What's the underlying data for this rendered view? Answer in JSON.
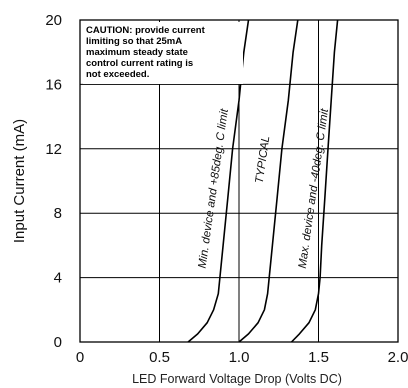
{
  "chart_data": {
    "type": "line",
    "title": "",
    "xlabel": "LED Forward Voltage Drop (Volts DC)",
    "ylabel": "Input Current (mA)",
    "xlim": [
      0,
      2.0
    ],
    "ylim": [
      0,
      20
    ],
    "x_ticks": [
      "0",
      "0.5",
      "1.0",
      "1.5",
      "2.0"
    ],
    "y_ticks": [
      "0",
      "4",
      "8",
      "12",
      "16",
      "20"
    ],
    "grid": true,
    "annotation_lines": [
      "CAUTION: provide current",
      "limiting so that 25mA",
      "maximum steady state",
      "control current rating is",
      "not exceeded."
    ],
    "series": [
      {
        "label": "Min. device and +85deg. C limit",
        "x": [
          0.68,
          0.74,
          0.8,
          0.84,
          0.87,
          0.88,
          0.9,
          0.93,
          0.96,
          1.0,
          1.03,
          1.06
        ],
        "y": [
          0,
          0.5,
          1.2,
          2.0,
          3.0,
          4.0,
          6.0,
          9.0,
          12.0,
          15.0,
          18.0,
          20.0
        ]
      },
      {
        "label": "TYPICAL",
        "x": [
          1.0,
          1.06,
          1.12,
          1.16,
          1.18,
          1.19,
          1.21,
          1.24,
          1.27,
          1.31,
          1.34,
          1.37
        ],
        "y": [
          0,
          0.5,
          1.2,
          2.0,
          3.0,
          4.0,
          6.0,
          9.0,
          12.0,
          15.0,
          18.0,
          20.0
        ]
      },
      {
        "label": "Max. device and -40deg. C limit",
        "x": [
          1.33,
          1.38,
          1.44,
          1.48,
          1.5,
          1.51,
          1.52,
          1.54,
          1.56,
          1.58,
          1.6,
          1.62
        ],
        "y": [
          0,
          0.5,
          1.2,
          2.0,
          3.0,
          4.0,
          6.0,
          9.0,
          12.0,
          15.0,
          18.0,
          20.0
        ]
      }
    ]
  }
}
